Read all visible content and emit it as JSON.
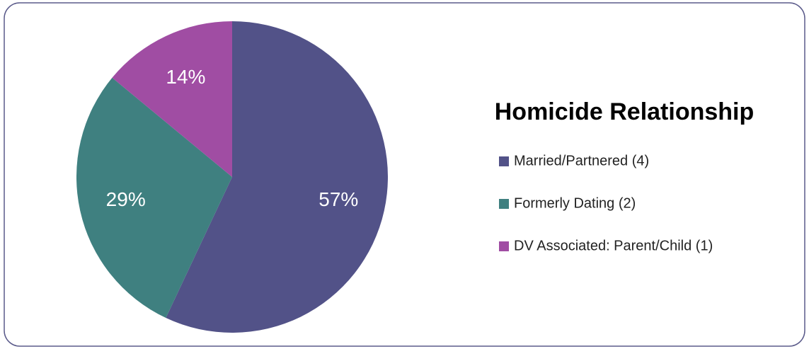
{
  "chart_data": {
    "type": "pie",
    "title": "Homicide Relationship",
    "categories": [
      "Married/Partnered (4)",
      "Formerly Dating (2)",
      "DV Associated: Parent/Child (1)"
    ],
    "values": [
      57,
      29,
      14
    ],
    "value_labels": [
      "57%",
      "29%",
      "14%"
    ],
    "colors": [
      "#525288",
      "#3f8080",
      "#a04da3"
    ],
    "legend": "right"
  }
}
